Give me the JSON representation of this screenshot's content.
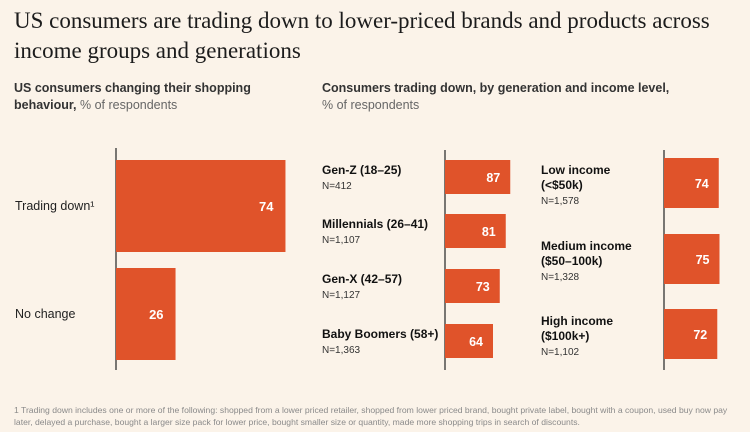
{
  "title": "US consumers are trading down to lower-priced brands and products across income groups and generations",
  "left_subtitle": {
    "bold": "US consumers changing their shopping behaviour,",
    "light": "% of respondents"
  },
  "right_subtitle": {
    "bold": "Consumers trading down, by generation and income level,",
    "light": "% of respondents"
  },
  "footnote": "1 Trading down includes one or more of the following: shopped from a lower priced retailer, shopped from lower priced brand, bought private label, bought with a coupon, used buy now pay later, delayed a purchase, bought a larger size pack for lower price, bought smaller size or quantity, made more shopping trips in search of discounts.",
  "colors": {
    "bar": "#e0532a",
    "axis": "#333333",
    "background": "#fbf3e9",
    "bar_text": "#ffffff"
  },
  "chart_data": [
    {
      "type": "bar",
      "orientation": "horizontal",
      "categories": [
        "Trading down¹",
        "No change"
      ],
      "values": [
        74,
        26
      ],
      "xlim": [
        0,
        100
      ]
    },
    {
      "type": "bar",
      "orientation": "horizontal",
      "categories": [
        "Gen-Z (18–25)",
        "Millennials (26–41)",
        "Gen-X (42–57)",
        "Baby Boomers (58+)"
      ],
      "sample_sizes": [
        "N=412",
        "N=1,107",
        "N=1,127",
        "N=1,363"
      ],
      "values": [
        87,
        81,
        73,
        64
      ],
      "xlim": [
        0,
        100
      ]
    },
    {
      "type": "bar",
      "orientation": "horizontal",
      "categories": [
        "Low income (<$50k)",
        "Medium income ($50–100k)",
        "High income ($100k+)"
      ],
      "category_lines": [
        [
          "Low income",
          "(<$50k)"
        ],
        [
          "Medium income",
          "($50–100k)"
        ],
        [
          "High income",
          "($100k+)"
        ]
      ],
      "sample_sizes": [
        "N=1,578",
        "N=1,328",
        "N=1,102"
      ],
      "values": [
        74,
        75,
        72
      ],
      "xlim": [
        0,
        100
      ]
    }
  ]
}
